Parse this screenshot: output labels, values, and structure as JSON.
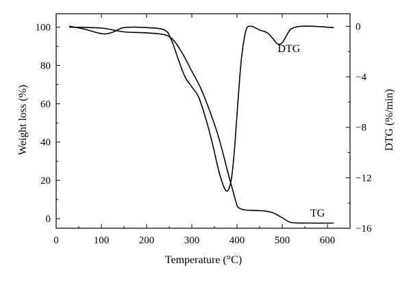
{
  "chart_data": {
    "type": "line",
    "xlabel": "Temperature (°C)",
    "ylabel_left": "Weight loss (%)",
    "ylabel_right": "DTG (%/min)",
    "xlim": [
      0,
      650
    ],
    "ylim_left": [
      -5,
      107
    ],
    "ylim_right": [
      -16,
      1.0
    ],
    "x_ticks": [
      0,
      100,
      200,
      300,
      400,
      500,
      600
    ],
    "y_left_ticks": [
      0,
      20,
      40,
      60,
      80,
      100
    ],
    "y_right_ticks": [
      0,
      -4,
      -8,
      -12,
      -16
    ],
    "grid": false,
    "series": [
      {
        "name": "TG",
        "axis": "left",
        "x": [
          30,
          100,
          150,
          200,
          240,
          260,
          280,
          300,
          320,
          340,
          360,
          380,
          395,
          400,
          405,
          420,
          460,
          480,
          500,
          520,
          560,
          613
        ],
        "y": [
          100,
          99.5,
          97.5,
          97,
          96,
          93,
          86,
          77,
          68,
          56,
          42,
          24,
          11,
          7,
          5.5,
          4.5,
          4,
          3,
          0.5,
          -2,
          -2.3,
          -2.3
        ]
      },
      {
        "name": "DTG",
        "axis": "right",
        "x": [
          30,
          60,
          90,
          110,
          130,
          150,
          200,
          240,
          255,
          270,
          285,
          300,
          315,
          330,
          345,
          360,
          372,
          380,
          388,
          395,
          402,
          410,
          420,
          430,
          440,
          450,
          460,
          470,
          480,
          490,
          500,
          510,
          520,
          540,
          570,
          613
        ],
        "y": [
          0.0,
          -0.2,
          -0.5,
          -0.6,
          -0.4,
          -0.1,
          -0.1,
          -0.3,
          -1.1,
          -2.6,
          -4.0,
          -4.8,
          -5.6,
          -7.2,
          -9.2,
          -11.5,
          -12.8,
          -13.0,
          -12.0,
          -9.5,
          -6.0,
          -2.5,
          -0.3,
          0.0,
          -0.1,
          -0.3,
          -0.4,
          -0.6,
          -1.0,
          -1.4,
          -1.3,
          -0.7,
          -0.2,
          0.0,
          0.0,
          -0.1
        ]
      }
    ],
    "annotations": [
      {
        "text": "DTG",
        "x": 490,
        "y": 87,
        "axis": "left"
      },
      {
        "text": "TG",
        "x": 562,
        "y": 1,
        "axis": "left"
      }
    ]
  }
}
